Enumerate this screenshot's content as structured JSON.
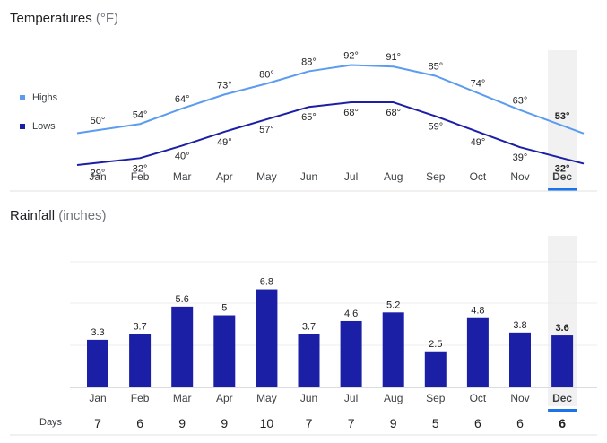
{
  "temperature": {
    "title": "Temperatures",
    "unit": "(°F)",
    "legend": [
      {
        "label": "Highs",
        "color": "#5b9bf0"
      },
      {
        "label": "Lows",
        "color": "#1b1fa6"
      }
    ],
    "selected_month": "Dec",
    "chart_data": {
      "type": "line",
      "title": "Temperatures (°F)",
      "categories": [
        "Jan",
        "Feb",
        "Mar",
        "Apr",
        "May",
        "Jun",
        "Jul",
        "Aug",
        "Sep",
        "Oct",
        "Nov",
        "Dec"
      ],
      "series": [
        {
          "name": "Highs",
          "values": [
            50,
            54,
            64,
            73,
            80,
            88,
            92,
            91,
            85,
            74,
            63,
            53
          ],
          "color": "#5b9bf0"
        },
        {
          "name": "Lows",
          "values": [
            29,
            32,
            40,
            49,
            57,
            65,
            68,
            68,
            59,
            49,
            39,
            32
          ],
          "color": "#1b1fa6"
        }
      ],
      "value_suffix": "°",
      "grid": false,
      "legend_position": "left"
    }
  },
  "rainfall": {
    "title": "Rainfall",
    "unit": "(inches)",
    "selected_month": "Dec",
    "days_label": "Days",
    "days": [
      7,
      6,
      9,
      9,
      10,
      7,
      7,
      9,
      5,
      6,
      6,
      6
    ],
    "chart_data": {
      "type": "bar",
      "title": "Rainfall (inches)",
      "categories": [
        "Jan",
        "Feb",
        "Mar",
        "Apr",
        "May",
        "Jun",
        "Jul",
        "Aug",
        "Sep",
        "Oct",
        "Nov",
        "Dec"
      ],
      "values": [
        3.3,
        3.7,
        5.6,
        5,
        6.8,
        3.7,
        4.6,
        5.2,
        2.5,
        4.8,
        3.8,
        3.6
      ],
      "bar_color": "#1b1fa6",
      "grid": true,
      "ylim": [
        0,
        10.5
      ]
    }
  },
  "colors": {
    "accent": "#1a73e8",
    "highlight_band": "#f1f1f1",
    "axis_text": "#3c4043",
    "gridline": "#ececec"
  }
}
